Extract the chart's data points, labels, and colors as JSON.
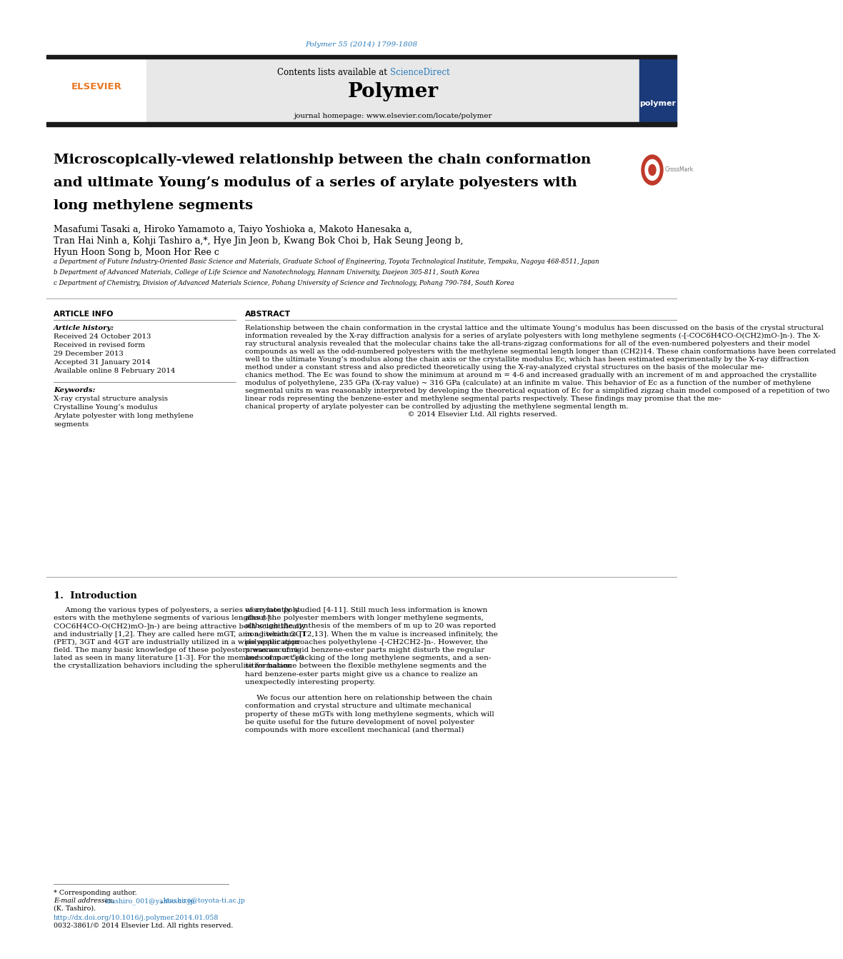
{
  "page_bg": "#ffffff",
  "top_citation": "Polymer 55 (2014) 1799-1808",
  "top_citation_color": "#2b7bba",
  "header_text1": "Contents lists available at ",
  "header_sciencedirect": "ScienceDirect",
  "header_sciencedirect_color": "#2b7bba",
  "journal_name": "Polymer",
  "journal_homepage": "journal homepage: www.elsevier.com/locate/polymer",
  "thick_bar_color": "#1a1a1a",
  "title_line1": "Microscopically-viewed relationship between the chain conformation",
  "title_line2": "and ultimate Young’s modulus of a series of arylate polyesters with",
  "title_line3": "long methylene segments",
  "authors_line1": "Masafumi Tasaki a, Hiroko Yamamoto a, Taiyo Yoshioka a, Makoto Hanesaka a,",
  "authors_line2": "Tran Hai Ninh a, Kohji Tashiro a,*, Hye Jin Jeon b, Kwang Bok Choi b, Hak Seung Jeong b,",
  "authors_line3": "Hyun Hoon Song b, Moon Hor Ree c",
  "affil_a": "a Department of Future Industry-Oriented Basic Science and Materials, Graduate School of Engineering, Toyota Technological Institute, Tempaku, Nagoya 468-8511, Japan",
  "affil_b": "b Department of Advanced Materials, College of Life Science and Nanotechnology, Hannam University, Daejeon 305-811, South Korea",
  "affil_c": "c Department of Chemistry, Division of Advanced Materials Science, Pohang University of Science and Technology, Pohang 790-784, South Korea",
  "article_info_title": "ARTICLE INFO",
  "article_history_label": "Article history:",
  "article_history": [
    "Received 24 October 2013",
    "Received in revised form",
    "29 December 2013",
    "Accepted 31 January 2014",
    "Available online 8 February 2014"
  ],
  "keywords_label": "Keywords:",
  "keywords": [
    "X-ray crystal structure analysis",
    "Crystalline Young’s modulus",
    "Arylate polyester with long methylene",
    "segments"
  ],
  "abstract_title": "ABSTRACT",
  "abstract_lines": [
    "Relationship between the chain conformation in the crystal lattice and the ultimate Young’s modulus has been discussed on the basis of the crystal structural",
    "information revealed by the X-ray diffraction analysis for a series of arylate polyesters with long methylene segments (-[-COC6H4CO-O(CH2)mO-]n-). The X-",
    "ray structural analysis revealed that the molecular chains take the all-trans-zigzag conformations for all of the even-numbered polyesters and their model",
    "compounds as well as the odd-numbered polyesters with the methylene segmental length longer than (CH2)14. These chain conformations have been correlated",
    "well to the ultimate Young’s modulus along the chain axis or the crystallite modulus Ec, which has been estimated experimentally by the X-ray diffraction",
    "method under a constant stress and also predicted theoretically using the X-ray-analyzed crystal structures on the basis of the molecular me-",
    "chanics method. The Ec was found to show the minimum at around m = 4-6 and increased gradually with an increment of m and approached the crystallite",
    "modulus of polyethylene, 235 GPa (X-ray value) ~ 316 GPa (calculate) at an infinite m value. This behavior of Ec as a function of the number of methylene",
    "segmental units m was reasonably interpreted by developing the theoretical equation of Ec for a simplified zigzag chain model composed of a repetition of two",
    "linear rods representing the benzene-ester and methylene segmental parts respectively. These findings may promise that the me-",
    "chanical property of arylate polyester can be controlled by adjusting the methylene segmental length m.",
    "                                                                      © 2014 Elsevier Ltd. All rights reserved."
  ],
  "intro_title": "1.  Introduction",
  "intro_col1_lines": [
    "     Among the various types of polyesters, a series of arylate poly-",
    "esters with the methylene segments of various lengths (-[-",
    "COC6H4CO-O(CH2)mO-]n-) are being attractive both scientifically",
    "and industrially [1,2]. They are called here mGT, among which 2GT",
    "(PET), 3GT and 4GT are industrially utilized in a wide application",
    "field. The many basic knowledge of these polyesters was accumu-",
    "lated as seen in many literature [1-3]. For the members of m = 5-9",
    "the crystallization behaviors including the spherulite formation"
  ],
  "intro_col2_lines": [
    "were mostly studied [4-11]. Still much less information is known",
    "about the polyester members with longer methylene segments,",
    "although the synthesis of the members of m up to 20 was reported",
    "in a literature [12,13]. When the m value is increased infinitely, the",
    "polyester approaches polyethylene -[-CH2CH2-]n-. However, the",
    "presence of rigid benzene-ester parts might disturb the regular",
    "and compact packing of the long methylene segments, and a sen-",
    "sitive balance between the flexible methylene segments and the",
    "hard benzene-ester parts might give us a chance to realize an",
    "unexpectedly interesting property.",
    "",
    "     We focus our attention here on relationship between the chain",
    "conformation and crystal structure and ultimate mechanical",
    "property of these mGTs with long methylene segments, which will",
    "be quite useful for the future development of novel polyester",
    "compounds with more excellent mechanical (and thermal)"
  ],
  "footnote_star": "* Corresponding author.",
  "footnote_email_label": "E-mail addresses:",
  "footnote_email1": "ktashiro_001@yahoo.co.jp",
  "footnote_email2": "ktashiro@toyota-ti.ac.jp",
  "footnote_name": "(K. Tashiro).",
  "footnote_doi": "http://dx.doi.org/10.1016/j.polymer.2014.01.058",
  "footnote_issn": "0032-3861/© 2014 Elsevier Ltd. All rights reserved.",
  "email_color": "#2b7bba",
  "doi_color": "#2b7bba",
  "orange_color": "#e87722",
  "crossmark_red": "#c0392b",
  "header_gray": "#e8e8e8",
  "navy_color": "#1a3a7a"
}
